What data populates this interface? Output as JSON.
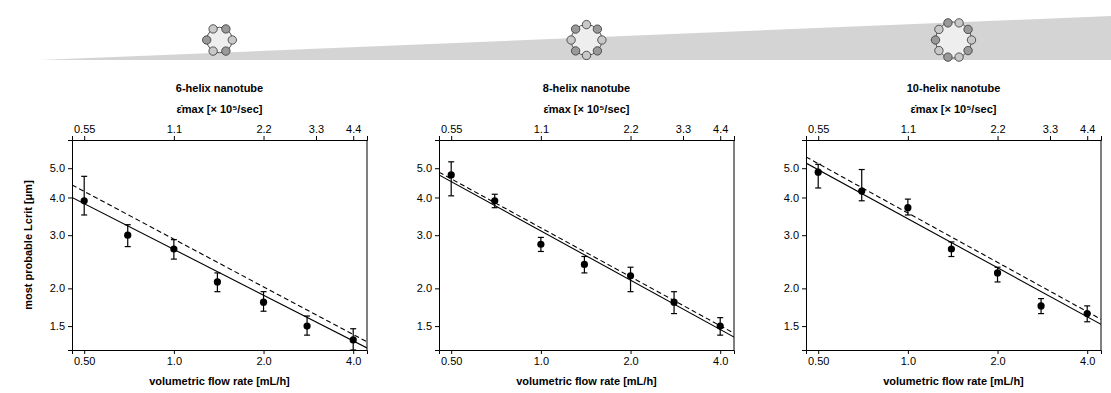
{
  "chart_data": [
    {
      "type": "scatter",
      "title": "6-helix nanotube",
      "helix_count": 6,
      "log": true,
      "grid": false,
      "x_label": "volumetric flow rate [mL/h]",
      "x2_label": "ε̇max [× 10⁵/sec]",
      "y_label": "most probable Lcrit [μm]",
      "x": [
        0.5,
        0.7,
        1.0,
        1.4,
        2.0,
        2.8,
        4.0
      ],
      "xlim": [
        0.455,
        4.45
      ],
      "xticks": [
        {
          "value": 0.5,
          "label": "0.50"
        },
        {
          "value": 1,
          "label": "1.0"
        },
        {
          "value": 2,
          "label": "2.0"
        },
        {
          "value": 4,
          "label": "4.0"
        }
      ],
      "x2lim": [
        0.5005,
        4.895
      ],
      "x2ticks": [
        0.55,
        1.1,
        2.2,
        3.3,
        4.4
      ],
      "ylim": [
        1.25,
        6.2
      ],
      "yticks": [
        1.5,
        {
          "value": 2,
          "label": "2.0"
        },
        {
          "value": 3,
          "label": "3.0"
        },
        {
          "value": 4,
          "label": "4.0"
        },
        {
          "value": 5,
          "label": "5.0"
        }
      ],
      "series": [
        {
          "type": "scatter",
          "marker": "circle",
          "color": "#000000",
          "values": [
            3.9,
            3.0,
            2.7,
            2.1,
            1.8,
            1.5,
            1.35
          ],
          "error_plus": [
            0.8,
            0.25,
            0.2,
            0.15,
            0.15,
            0.12,
            0.12
          ],
          "error_minus": [
            0.4,
            0.25,
            0.2,
            0.15,
            0.12,
            0.1,
            0.1
          ]
        },
        {
          "type": "line",
          "line_style": "solid",
          "color": "#000000",
          "x": [
            0.455,
            4.45
          ],
          "values": [
            4.0,
            1.27
          ]
        },
        {
          "type": "line",
          "line_style": "dashed",
          "color": "#000000",
          "x": [
            0.455,
            4.45
          ],
          "values": [
            4.4,
            1.33
          ]
        }
      ]
    },
    {
      "type": "scatter",
      "title": "8-helix nanotube",
      "helix_count": 8,
      "log": true,
      "grid": false,
      "x_label": "volumetric flow rate [mL/h]",
      "x2_label": "ε̇max [× 10⁵/sec]",
      "x": [
        0.5,
        0.7,
        1.0,
        1.4,
        2.0,
        2.8,
        4.0
      ],
      "xlim": [
        0.455,
        4.45
      ],
      "xticks": [
        {
          "value": 0.5,
          "label": "0.50"
        },
        {
          "value": 1,
          "label": "1.0"
        },
        {
          "value": 2,
          "label": "2.0"
        },
        {
          "value": 4,
          "label": "4.0"
        }
      ],
      "x2lim": [
        0.5005,
        4.895
      ],
      "x2ticks": [
        0.55,
        1.1,
        2.2,
        3.3,
        4.4
      ],
      "ylim": [
        1.25,
        6.2
      ],
      "yticks": [
        1.5,
        {
          "value": 2,
          "label": "2.0"
        },
        {
          "value": 3,
          "label": "3.0"
        },
        {
          "value": 4,
          "label": "4.0"
        },
        {
          "value": 5,
          "label": "5.0"
        }
      ],
      "series": [
        {
          "type": "scatter",
          "marker": "circle",
          "color": "#000000",
          "values": [
            4.75,
            3.9,
            2.8,
            2.4,
            2.2,
            1.8,
            1.5
          ],
          "error_plus": [
            0.5,
            0.2,
            0.15,
            0.15,
            0.15,
            0.15,
            0.1
          ],
          "error_minus": [
            0.7,
            0.2,
            0.15,
            0.15,
            0.25,
            0.15,
            0.1
          ]
        },
        {
          "type": "line",
          "line_style": "solid",
          "color": "#000000",
          "x": [
            0.455,
            4.45
          ],
          "values": [
            4.75,
            1.38
          ]
        },
        {
          "type": "line",
          "line_style": "dashed",
          "color": "#000000",
          "x": [
            0.455,
            4.45
          ],
          "values": [
            4.85,
            1.42
          ]
        }
      ]
    },
    {
      "type": "scatter",
      "title": "10-helix nanotube",
      "helix_count": 10,
      "log": true,
      "grid": false,
      "x_label": "volumetric flow rate [mL/h]",
      "x2_label": "ε̇max [× 10⁵/sec]",
      "x": [
        0.5,
        0.7,
        1.0,
        1.4,
        2.0,
        2.8,
        4.0
      ],
      "xlim": [
        0.455,
        4.45
      ],
      "xticks": [
        {
          "value": 0.5,
          "label": "0.50"
        },
        {
          "value": 1,
          "label": "1.0"
        },
        {
          "value": 2,
          "label": "2.0"
        },
        {
          "value": 4,
          "label": "4.0"
        }
      ],
      "x2lim": [
        0.5005,
        4.895
      ],
      "x2ticks": [
        0.55,
        1.1,
        2.2,
        3.3,
        4.4
      ],
      "ylim": [
        1.25,
        6.2
      ],
      "yticks": [
        1.5,
        {
          "value": 2,
          "label": "2.0"
        },
        {
          "value": 3,
          "label": "3.0"
        },
        {
          "value": 4,
          "label": "4.0"
        },
        {
          "value": 5,
          "label": "5.0"
        }
      ],
      "series": [
        {
          "type": "scatter",
          "marker": "circle",
          "color": "#000000",
          "values": [
            4.85,
            4.2,
            3.7,
            2.7,
            2.25,
            1.75,
            1.65
          ],
          "error_plus": [
            0.3,
            0.75,
            0.25,
            0.15,
            0.1,
            0.1,
            0.1
          ],
          "error_minus": [
            0.55,
            0.3,
            0.2,
            0.15,
            0.15,
            0.1,
            0.1
          ]
        },
        {
          "type": "line",
          "line_style": "solid",
          "color": "#000000",
          "x": [
            0.455,
            4.45
          ],
          "values": [
            5.2,
            1.52
          ]
        },
        {
          "type": "line",
          "line_style": "dashed",
          "color": "#000000",
          "x": [
            0.455,
            4.45
          ],
          "values": [
            5.45,
            1.58
          ]
        }
      ]
    }
  ]
}
